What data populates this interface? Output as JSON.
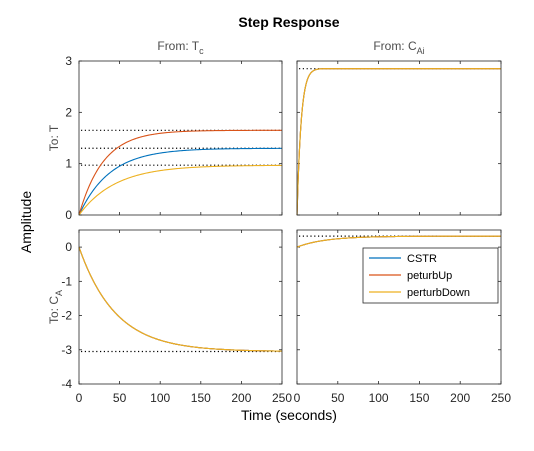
{
  "chart_data": {
    "type": "line",
    "title": "Step Response",
    "xlabel": "Time (seconds)",
    "ylabel": "Amplitude",
    "columns": [
      {
        "prefix": "From: ",
        "main": "T",
        "sub": "c"
      },
      {
        "prefix": "From: ",
        "main": "C",
        "sub": "Ai"
      }
    ],
    "rows": [
      {
        "prefix": "To: ",
        "main": "T",
        "sub": ""
      },
      {
        "prefix": "To: ",
        "main": "C",
        "sub": "A"
      }
    ],
    "xlim": [
      0,
      250
    ],
    "xticks": [
      0,
      50,
      100,
      150,
      200,
      250
    ],
    "row_ylims": [
      [
        0,
        3
      ],
      [
        -4,
        0.5
      ]
    ],
    "row_yticks": [
      [
        0,
        1,
        2,
        3
      ],
      [
        -4,
        -3,
        -2,
        -1,
        0
      ]
    ],
    "grid": false,
    "legend_position": "right, inside bottom-right panel",
    "series": [
      {
        "name": "CSTR",
        "color": "#0072BD"
      },
      {
        "name": "peturbUp",
        "color": "#D95319"
      },
      {
        "name": "perturbDown",
        "color": "#EDB120"
      }
    ],
    "panels": [
      {
        "row": 0,
        "col": 0,
        "steady_state": [
          1.65,
          1.3,
          0.97
        ],
        "series": [
          {
            "name": "CSTR",
            "final": 1.3,
            "time_constant": 38,
            "shape": "exp",
            "x": [
              0,
              25,
              50,
              100,
              150,
              250
            ],
            "y": [
              0,
              0.63,
              0.97,
              1.24,
              1.29,
              1.3
            ]
          },
          {
            "name": "peturbUp",
            "final": 1.65,
            "time_constant": 30,
            "shape": "exp",
            "x": [
              0,
              25,
              50,
              100,
              150,
              250
            ],
            "y": [
              0,
              0.93,
              1.34,
              1.59,
              1.64,
              1.65
            ]
          },
          {
            "name": "perturbDown",
            "final": 0.97,
            "time_constant": 45,
            "shape": "exp",
            "x": [
              0,
              25,
              50,
              100,
              150,
              250
            ],
            "y": [
              0,
              0.41,
              0.67,
              0.9,
              0.95,
              0.97
            ]
          }
        ]
      },
      {
        "row": 0,
        "col": 1,
        "steady_state": [
          2.85
        ],
        "series": [
          {
            "name": "CSTR",
            "final": 2.85,
            "time_constant": 6,
            "shape": "overshoot",
            "x": [
              0,
              10,
              20,
              40,
              100,
              250
            ],
            "y": [
              0,
              2.32,
              2.8,
              2.92,
              2.86,
              2.85
            ]
          },
          {
            "name": "peturbUp",
            "final": 2.85,
            "time_constant": 6,
            "shape": "overshoot",
            "x": [
              0,
              10,
              20,
              40,
              100,
              250
            ],
            "y": [
              0,
              2.32,
              2.8,
              2.92,
              2.86,
              2.85
            ]
          },
          {
            "name": "perturbDown",
            "final": 2.85,
            "time_constant": 6,
            "shape": "overshoot",
            "x": [
              0,
              10,
              20,
              40,
              100,
              250
            ],
            "y": [
              0,
              2.32,
              2.8,
              2.92,
              2.86,
              2.85
            ]
          }
        ]
      },
      {
        "row": 1,
        "col": 0,
        "steady_state": [
          -3.05
        ],
        "series": [
          {
            "name": "CSTR",
            "final": -3.05,
            "time_constant": 45,
            "shape": "exp",
            "x": [
              0,
              50,
              100,
              150,
              250
            ],
            "y": [
              0,
              -2.55,
              -2.98,
              -3.04,
              -3.05
            ]
          },
          {
            "name": "peturbUp",
            "final": -3.05,
            "time_constant": 45,
            "shape": "exp",
            "x": [
              0,
              50,
              100,
              150,
              250
            ],
            "y": [
              0,
              -2.55,
              -2.98,
              -3.04,
              -3.05
            ]
          },
          {
            "name": "perturbDown",
            "final": -3.05,
            "time_constant": 45,
            "shape": "exp",
            "x": [
              0,
              50,
              100,
              150,
              250
            ],
            "y": [
              0,
              -2.55,
              -2.98,
              -3.04,
              -3.05
            ]
          }
        ]
      },
      {
        "row": 1,
        "col": 1,
        "steady_state": [
          0.32
        ],
        "series": [
          {
            "name": "CSTR",
            "final": 0.32,
            "time_constant": 35,
            "shape": "exp_offset",
            "start": 0,
            "x": [
              0,
              50,
              100,
              250
            ],
            "y": [
              0,
              0.25,
              0.31,
              0.32
            ]
          },
          {
            "name": "peturbUp",
            "final": 0.32,
            "time_constant": 35,
            "shape": "exp_offset",
            "start": 0,
            "x": [
              0,
              50,
              100,
              250
            ],
            "y": [
              0,
              0.25,
              0.31,
              0.32
            ]
          },
          {
            "name": "perturbDown",
            "final": 0.32,
            "time_constant": 35,
            "shape": "exp_offset",
            "start": 0,
            "x": [
              0,
              50,
              100,
              250
            ],
            "y": [
              0,
              0.25,
              0.31,
              0.32
            ]
          }
        ]
      }
    ]
  }
}
